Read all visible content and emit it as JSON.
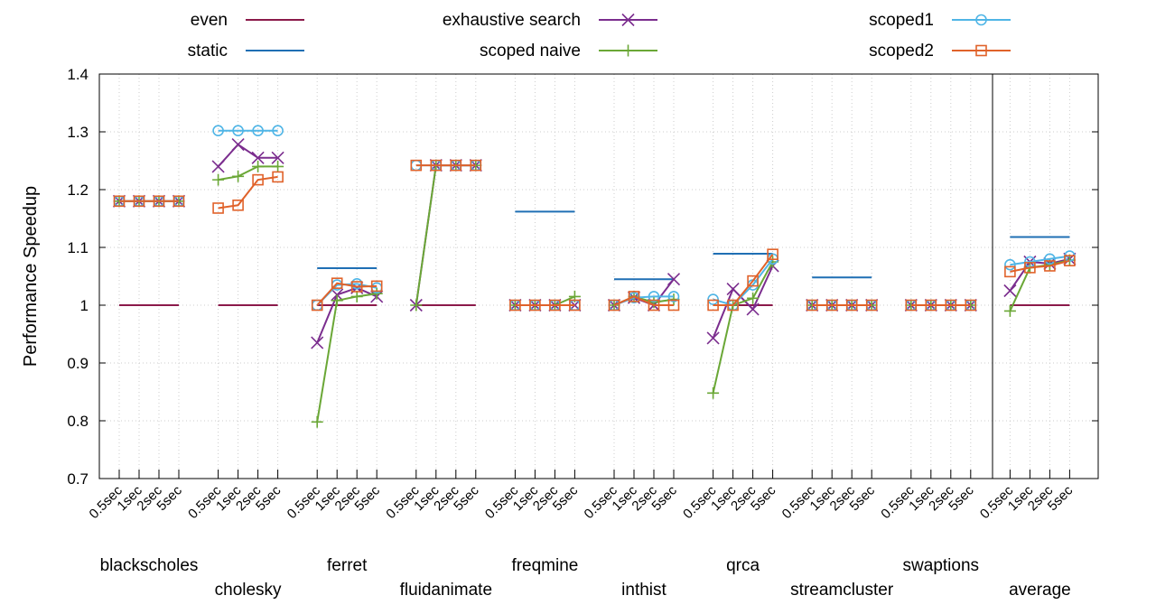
{
  "chart_data": {
    "type": "line",
    "ylabel": "Performance Speedup",
    "xlabel": "",
    "ylim": [
      0.7,
      1.4
    ],
    "yticks": [
      "0.7",
      "0.8",
      "0.9",
      "1",
      "1.1",
      "1.2",
      "1.3",
      "1.4"
    ],
    "grid": true,
    "legend_placement": "top",
    "legend_note": "",
    "intervals": [
      "0.5sec",
      "1sec",
      "2sec",
      "5sec"
    ],
    "groups": [
      "blackscholes",
      "cholesky",
      "ferret",
      "fluidanimate",
      "freqmine",
      "inthist",
      "qrca",
      "streamcluster",
      "swaptions",
      "average"
    ],
    "series": [
      {
        "name": "even",
        "style": "line",
        "color": "#8b1a4a",
        "values": [
          [
            1,
            1,
            1,
            1
          ],
          [
            1,
            1,
            1,
            1
          ],
          [
            1,
            1,
            1,
            1
          ],
          [
            1,
            1,
            1,
            1
          ],
          [
            null,
            null,
            null,
            null
          ],
          [
            null,
            null,
            null,
            null
          ],
          [
            1,
            1,
            1,
            1
          ],
          [
            1,
            1,
            1,
            1
          ],
          [
            1,
            1,
            1,
            1
          ],
          [
            1,
            1,
            1,
            1
          ]
        ]
      },
      {
        "name": "static",
        "style": "line",
        "color": "#1f6fb4",
        "values": [
          [
            null,
            null,
            null,
            null
          ],
          [
            null,
            null,
            null,
            null
          ],
          [
            1.064,
            1.064,
            1.064,
            1.064
          ],
          [
            null,
            null,
            null,
            null
          ],
          [
            1.162,
            1.162,
            1.162,
            1.162
          ],
          [
            1.045,
            1.045,
            1.045,
            1.045
          ],
          [
            1.089,
            1.089,
            1.089,
            1.089
          ],
          [
            1.048,
            1.048,
            1.048,
            1.048
          ],
          [
            null,
            null,
            null,
            null
          ],
          [
            1.118,
            1.118,
            1.118,
            1.118
          ]
        ]
      },
      {
        "name": "exhaustive search",
        "style": "x",
        "color": "#7b2d8e",
        "values": [
          [
            1.18,
            1.18,
            1.18,
            1.18
          ],
          [
            1.24,
            1.278,
            1.255,
            1.255
          ],
          [
            0.935,
            1.018,
            1.03,
            1.015
          ],
          [
            1,
            1.242,
            1.242,
            1.242
          ],
          [
            1,
            1,
            1,
            1
          ],
          [
            1,
            1.013,
            1,
            1.045
          ],
          [
            0.943,
            1.028,
            0.993,
            1.068
          ],
          [
            1,
            1,
            1,
            1
          ],
          [
            1,
            1,
            1,
            1
          ],
          [
            1.025,
            1.075,
            1.072,
            1.08
          ]
        ]
      },
      {
        "name": "scoped naive",
        "style": "plus",
        "color": "#6aa736",
        "values": [
          [
            1.18,
            1.18,
            1.18,
            1.18
          ],
          [
            1.217,
            1.223,
            1.24,
            1.24
          ],
          [
            0.798,
            1.008,
            1.015,
            1.02
          ],
          [
            1,
            1.242,
            1.242,
            1.242
          ],
          [
            1,
            1,
            1,
            1.015
          ],
          [
            1,
            1.015,
            1.005,
            1.01
          ],
          [
            0.848,
            1,
            1.012,
            1.075
          ],
          [
            1,
            1,
            1,
            1
          ],
          [
            1,
            1,
            1,
            1
          ],
          [
            0.99,
            1.065,
            1.07,
            1.078
          ]
        ]
      },
      {
        "name": "scoped1",
        "style": "circle",
        "color": "#4fb5e6",
        "values": [
          [
            1.18,
            1.18,
            1.18,
            1.18
          ],
          [
            1.302,
            1.302,
            1.302,
            1.302
          ],
          [
            1,
            1.035,
            1.037,
            1.03
          ],
          [
            1.242,
            1.242,
            1.242,
            1.242
          ],
          [
            1,
            1,
            1,
            1
          ],
          [
            1,
            1.013,
            1.015,
            1.015
          ],
          [
            1.01,
            1,
            1.035,
            1.08
          ],
          [
            1,
            1,
            1,
            1
          ],
          [
            1,
            1,
            1,
            1
          ],
          [
            1.07,
            1.075,
            1.08,
            1.085
          ]
        ]
      },
      {
        "name": "scoped2",
        "style": "square",
        "color": "#e0622a",
        "values": [
          [
            1.18,
            1.18,
            1.18,
            1.18
          ],
          [
            1.168,
            1.173,
            1.217,
            1.222
          ],
          [
            1,
            1.038,
            1.032,
            1.033
          ],
          [
            1.242,
            1.242,
            1.242,
            1.242
          ],
          [
            1,
            1,
            1,
            1
          ],
          [
            1,
            1.015,
            1,
            1
          ],
          [
            1,
            1,
            1.042,
            1.088
          ],
          [
            1,
            1,
            1,
            1
          ],
          [
            1,
            1,
            1,
            1
          ],
          [
            1.058,
            1.065,
            1.068,
            1.077
          ]
        ]
      }
    ]
  }
}
